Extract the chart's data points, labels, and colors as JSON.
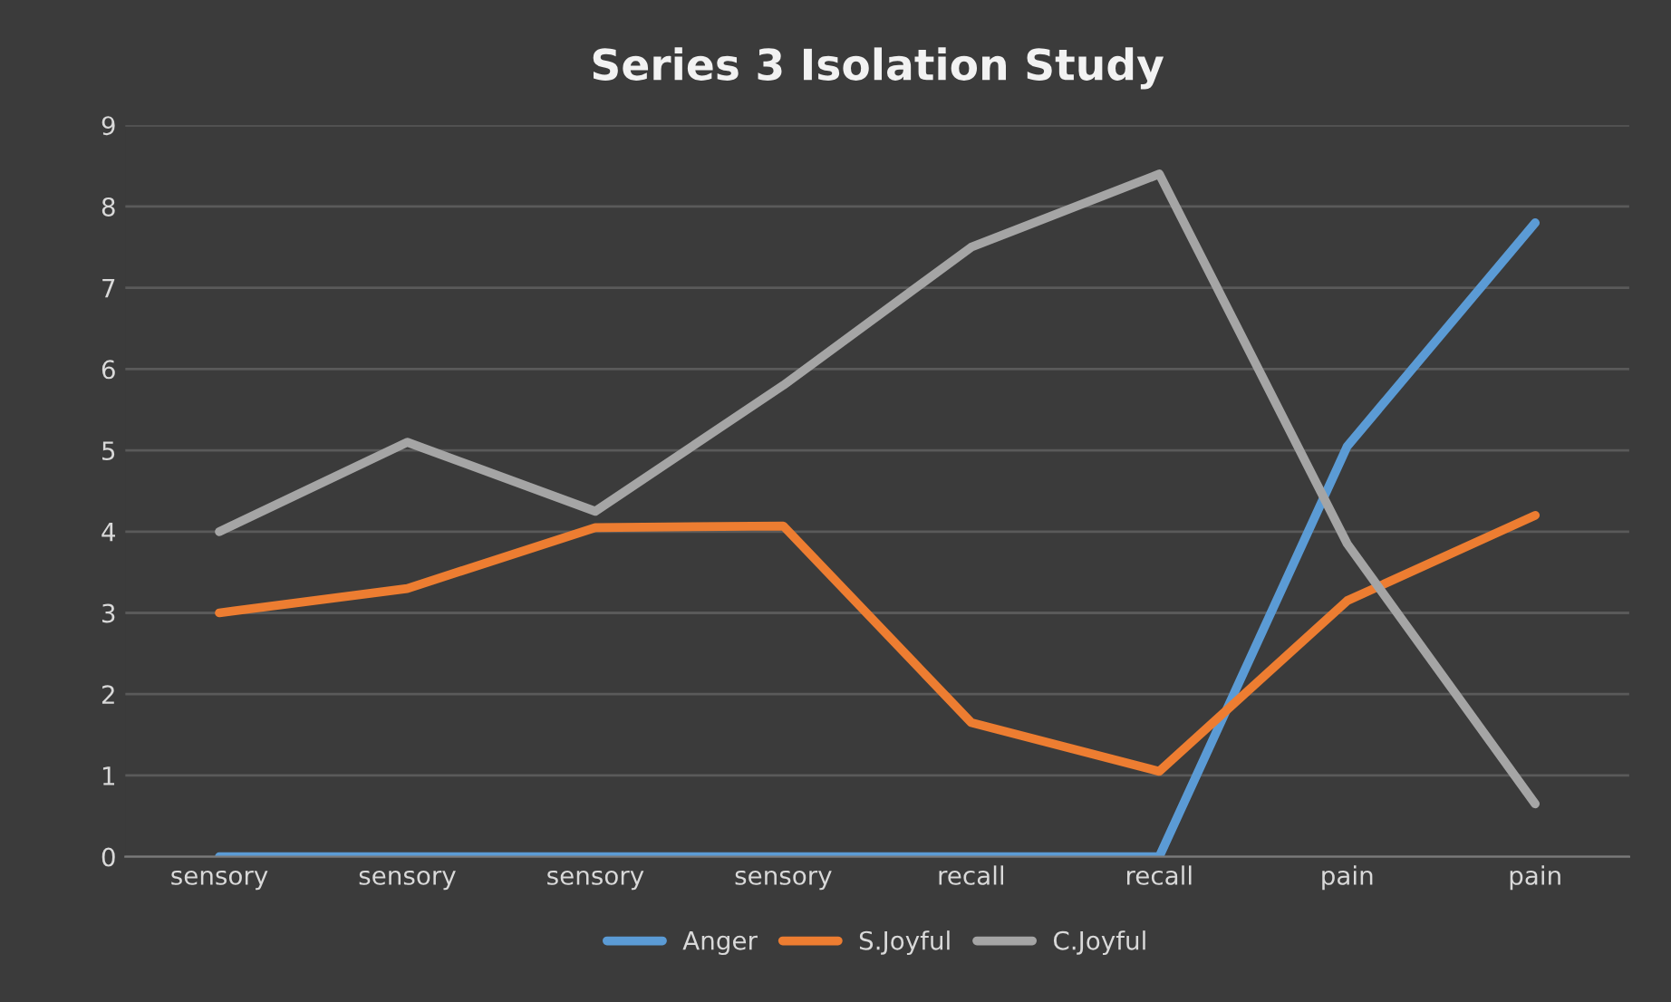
{
  "chart_data": {
    "type": "line",
    "title": "Series 3 Isolation Study",
    "categories": [
      "sensory",
      "sensory",
      "sensory",
      "sensory",
      "recall",
      "recall",
      "pain",
      "pain"
    ],
    "series": [
      {
        "name": "Anger",
        "color": "#5b9bd5",
        "values": [
          0,
          0,
          0,
          0,
          0,
          0,
          5.05,
          7.8
        ]
      },
      {
        "name": "S.Joyful",
        "color": "#ed7d31",
        "values": [
          3.0,
          3.3,
          4.05,
          4.07,
          1.65,
          1.05,
          3.15,
          4.2
        ]
      },
      {
        "name": "C.Joyful",
        "color": "#a5a5a5",
        "values": [
          4.0,
          5.1,
          4.25,
          5.8,
          7.5,
          8.4,
          3.85,
          0.65
        ]
      }
    ],
    "ylim": [
      0,
      9
    ],
    "yticks": [
      0,
      1,
      2,
      3,
      4,
      5,
      6,
      7,
      8,
      9
    ],
    "grid": "y",
    "legend": "bottom",
    "marker": "none",
    "line_style": "solid"
  }
}
